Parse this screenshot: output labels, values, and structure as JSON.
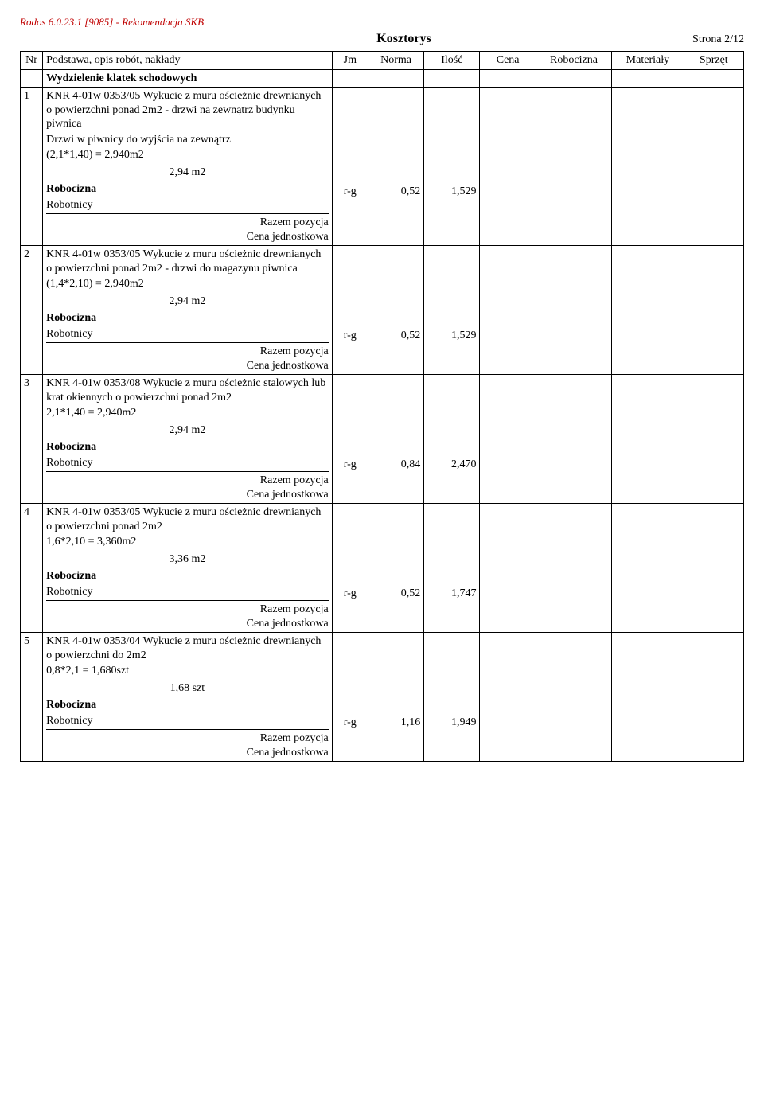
{
  "header_label": "Rodos 6.0.23.1 [9085] - Rekomendacja SKB",
  "doc_title": "Kosztorys",
  "page_indicator": "Strona 2/12",
  "columns": {
    "nr": "Nr",
    "desc": "Podstawa, opis robót, nakłady",
    "jm": "Jm",
    "norma": "Norma",
    "ilosc": "Ilość",
    "cena": "Cena",
    "robocizna": "Robocizna",
    "materialy": "Materiały",
    "sprzet": "Sprzęt"
  },
  "section_title": "Wydzielenie klatek schodowych",
  "labels": {
    "robocizna": "Robocizna",
    "robotnicy": "Robotnicy",
    "razem_pozycja": "Razem pozycja",
    "cena_jednostkowa": "Cena jednostkowa"
  },
  "items": [
    {
      "nr": "1",
      "title": "KNR 4-01w 0353/05  Wykucie z muru ościeżnic drewnianych o powierzchni ponad 2m2 - drzwi na zewnątrz budynku piwnica",
      "sub": "Drzwi w piwnicy do wyjścia na zewnątrz",
      "calc": "(2,1*1,40) = 2,940m2",
      "qty": "2,94  m2",
      "jm": "r-g",
      "norma": "0,52",
      "ilosc": "1,529"
    },
    {
      "nr": "2",
      "title": "KNR 4-01w 0353/05  Wykucie z muru ościeżnic drewnianych o powierzchni ponad 2m2 - drzwi do magazynu piwnica",
      "sub": "",
      "calc": "(1,4*2,10) = 2,940m2",
      "qty": "2,94  m2",
      "jm": "r-g",
      "norma": "0,52",
      "ilosc": "1,529"
    },
    {
      "nr": "3",
      "title": "KNR 4-01w 0353/08  Wykucie z muru ościeżnic stalowych lub krat okiennych o powierzchni ponad 2m2",
      "sub": "",
      "calc": "2,1*1,40 = 2,940m2",
      "qty": "2,94  m2",
      "jm": "r-g",
      "norma": "0,84",
      "ilosc": "2,470"
    },
    {
      "nr": "4",
      "title": "KNR 4-01w 0353/05  Wykucie z muru ościeżnic drewnianych o powierzchni ponad 2m2",
      "sub": "",
      "calc": "1,6*2,10 = 3,360m2",
      "qty": "3,36  m2",
      "jm": "r-g",
      "norma": "0,52",
      "ilosc": "1,747"
    },
    {
      "nr": "5",
      "title": "KNR 4-01w 0353/04  Wykucie z muru ościeżnic drewnianych o powierzchni do 2m2",
      "sub": "",
      "calc": "0,8*2,1 = 1,680szt",
      "qty": "1,68  szt",
      "jm": "r-g",
      "norma": "1,16",
      "ilosc": "1,949"
    }
  ]
}
